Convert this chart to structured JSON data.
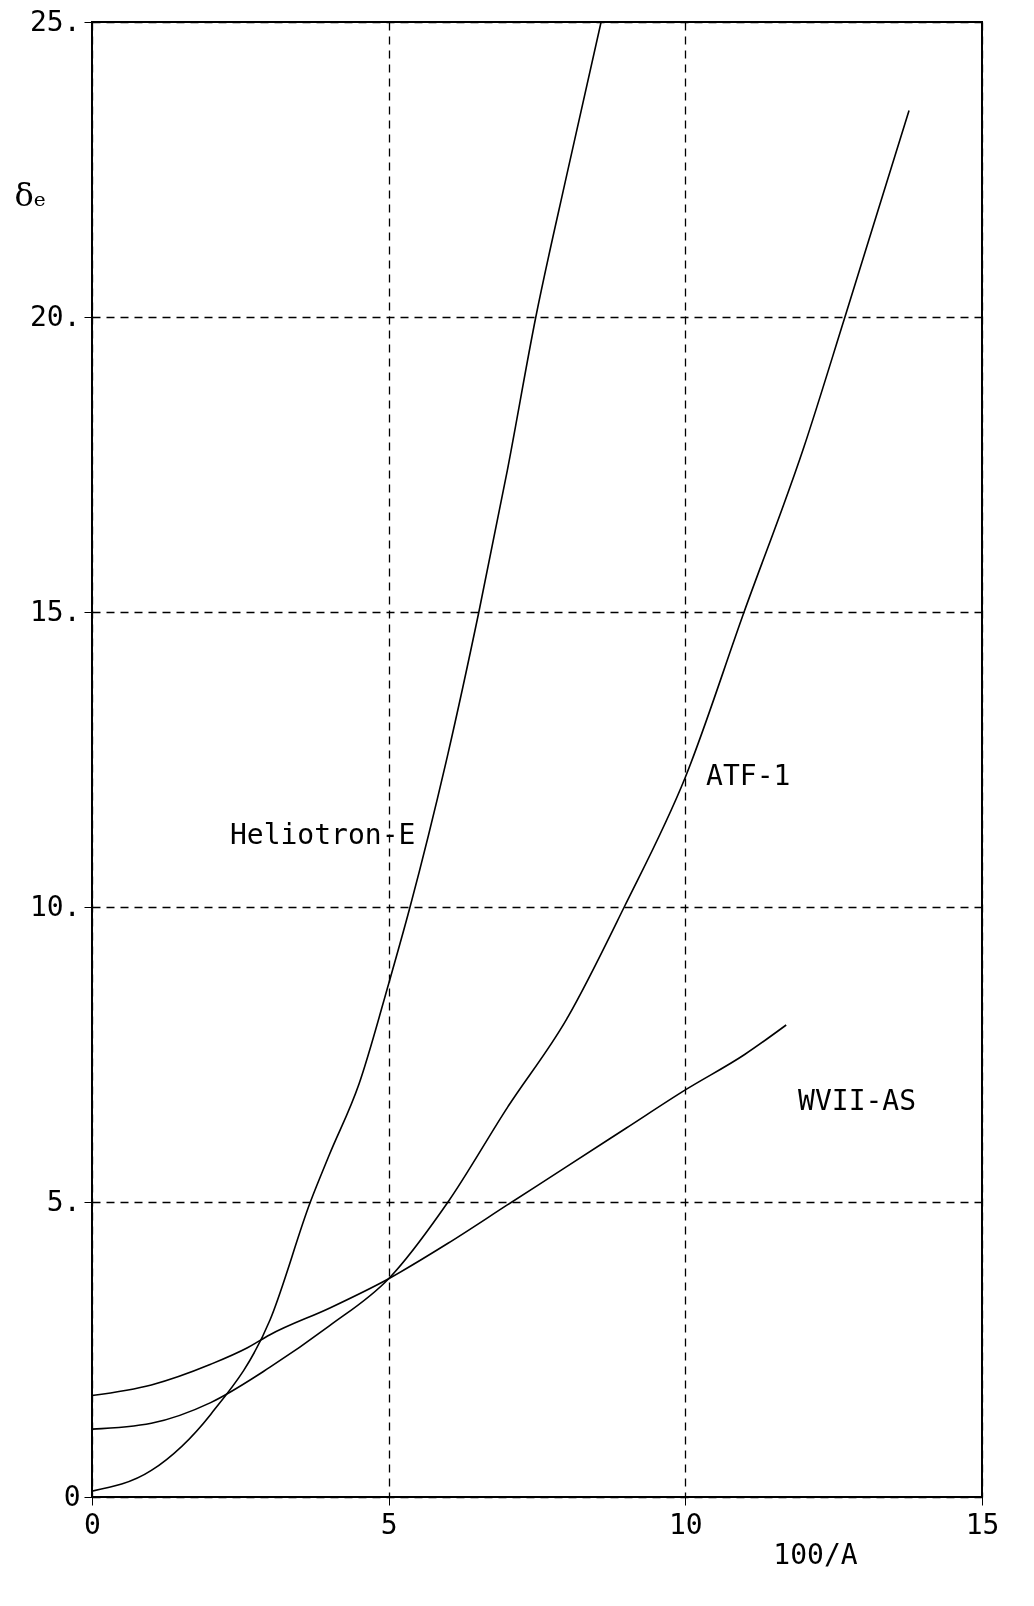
{
  "chart_data": {
    "type": "line",
    "xlabel": "100/A",
    "ylabel": "δₑ",
    "xlim": [
      0,
      15
    ],
    "xticks": [
      0,
      5,
      10,
      15
    ],
    "ylim": [
      0,
      25
    ],
    "yticks": [
      0,
      {
        "value": 5,
        "label": "5."
      },
      {
        "value": 10,
        "label": "10."
      },
      {
        "value": 15,
        "label": "15."
      },
      {
        "value": 20,
        "label": "20."
      },
      {
        "value": 25,
        "label": "25."
      }
    ],
    "grid": true,
    "series": [
      {
        "name": "Heliotron-E",
        "color": "#000000",
        "x": [
          0,
          1,
          2,
          3,
          3.68,
          4,
          4.5,
          5,
          5.36,
          6,
          6.52,
          7,
          7.48,
          8,
          8.58
        ],
        "values": [
          0.1,
          0.45,
          1.4,
          3.0,
          5,
          5.8,
          7.0,
          8.7,
          10,
          12.6,
          15,
          17.4,
          20,
          22.4,
          25
        ]
      },
      {
        "name": "ATF-1",
        "color": "#000000",
        "x": [
          0,
          1,
          2,
          3,
          4,
          5,
          6,
          7,
          8,
          8.97,
          10,
          10.99,
          12,
          12.69,
          13.77
        ],
        "values": [
          1.15,
          1.25,
          1.6,
          2.2,
          2.9,
          3.7,
          5.0,
          6.6,
          8.1,
          10,
          12.2,
          15,
          17.8,
          20,
          23.5
        ]
      },
      {
        "name": "WVII-AS",
        "color": "#000000",
        "x": [
          0,
          1,
          2,
          2.62,
          3,
          4,
          5,
          6,
          7,
          8,
          9,
          10,
          11,
          11.7
        ],
        "values": [
          1.72,
          1.9,
          2.25,
          2.53,
          2.75,
          3.2,
          3.7,
          4.3,
          4.95,
          5.6,
          6.25,
          6.9,
          7.5,
          8.0
        ]
      }
    ]
  }
}
